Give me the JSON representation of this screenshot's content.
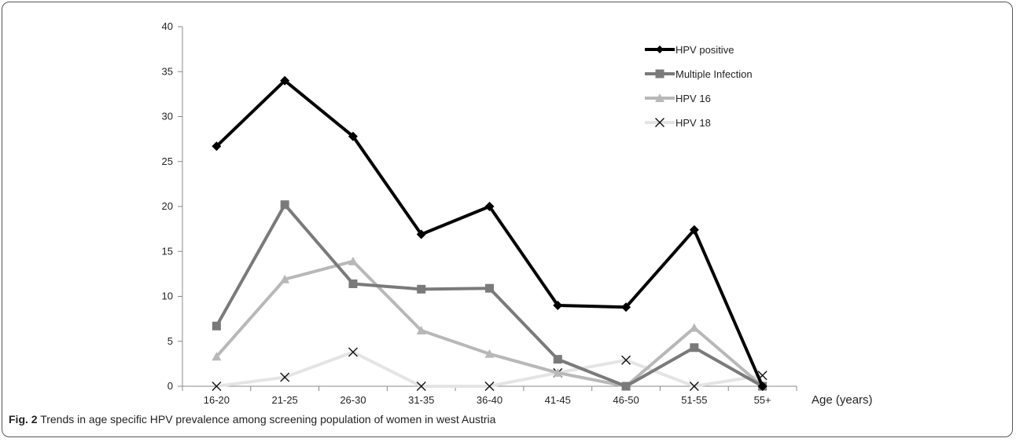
{
  "figure": {
    "label": "Fig. 2",
    "caption": "Trends in age specific HPV prevalence among screening population of women in west Austria"
  },
  "chart_data": {
    "type": "line",
    "categories": [
      "16-20",
      "21-25",
      "26-30",
      "31-35",
      "36-40",
      "41-45",
      "46-50",
      "51-55",
      "55+"
    ],
    "xlabel": "Age (years)",
    "ylabel": "",
    "ylim": [
      0,
      40
    ],
    "yticks": [
      0,
      5,
      10,
      15,
      20,
      25,
      30,
      35,
      40
    ],
    "grid": false,
    "legend_position": "top-right",
    "series": [
      {
        "name": "HPV positive",
        "color": "#000000",
        "marker": "diamond",
        "values": [
          26.7,
          34.0,
          27.8,
          16.9,
          20.0,
          9.0,
          8.8,
          17.4,
          0
        ]
      },
      {
        "name": "Multiple Infection",
        "color": "#7a7a7a",
        "marker": "square",
        "values": [
          6.7,
          20.2,
          11.4,
          10.8,
          10.9,
          3.0,
          0,
          4.3,
          0
        ]
      },
      {
        "name": "HPV 16",
        "color": "#b8b8b8",
        "marker": "triangle",
        "values": [
          3.3,
          11.9,
          13.9,
          6.2,
          3.6,
          1.5,
          0,
          6.5,
          0
        ]
      },
      {
        "name": "HPV 18",
        "color": "#e4e4e4",
        "marker": "x",
        "values": [
          0,
          1.0,
          3.8,
          0,
          0,
          1.5,
          2.9,
          0,
          1.2
        ]
      }
    ]
  }
}
